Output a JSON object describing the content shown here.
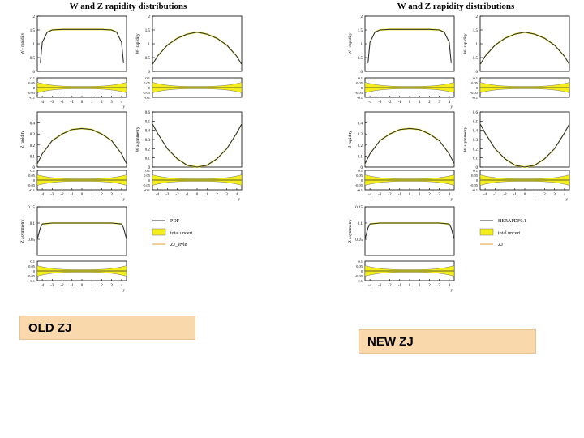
{
  "figures": [
    {
      "id": "old",
      "title": "W and Z rapidity distributions",
      "legend": [
        "PDF",
        "total uncert.",
        "ZJ_style"
      ],
      "caption": "OLD ZJ"
    },
    {
      "id": "new",
      "title": "W and Z rapidity distributions",
      "legend": [
        "HERAPDF0.1",
        "total uncert.",
        "ZJ"
      ],
      "caption": "NEW ZJ"
    }
  ],
  "colors": {
    "band": "#f4ee1c",
    "line": "#333333",
    "style_line": "#e0a030"
  },
  "chart_data": [
    {
      "type": "line",
      "ylabel": "W+ rapidity",
      "xlabel": "y",
      "xlim": [
        -4.5,
        4.5
      ],
      "ylim": [
        0,
        2
      ],
      "x_ticks": [
        "-4",
        "-3",
        "-2",
        "-1",
        "0",
        "1",
        "2",
        "3",
        "4"
      ],
      "y_ticks": [
        "0",
        "0.5",
        "1",
        "1.5",
        "2"
      ],
      "x": [
        -4.2,
        -4.0,
        -3.5,
        -3.0,
        -2.0,
        -1.0,
        0,
        1.0,
        2.0,
        3.0,
        3.5,
        4.0,
        4.2
      ],
      "series": [
        {
          "values": [
            0.3,
            1.05,
            1.42,
            1.5,
            1.52,
            1.52,
            1.52,
            1.52,
            1.52,
            1.5,
            1.42,
            1.05,
            0.3
          ]
        }
      ],
      "ratio_ylim": [
        -0.1,
        0.1
      ],
      "ratio_ticks": [
        "0.1",
        "0.05",
        "0",
        "-0.05",
        "-0.1"
      ]
    },
    {
      "type": "line",
      "ylabel": "W- rapidity",
      "xlabel": "",
      "xlim": [
        -4.5,
        4.5
      ],
      "ylim": [
        0,
        2
      ],
      "x_ticks": [],
      "y_ticks": [
        "0",
        "0.5",
        "1",
        "1.5",
        "2"
      ],
      "x": [
        -4.5,
        -4.0,
        -3.0,
        -2.0,
        -1.0,
        0,
        1.0,
        2.0,
        3.0,
        4.0,
        4.5
      ],
      "series": [
        {
          "values": [
            0.25,
            0.55,
            0.95,
            1.2,
            1.35,
            1.42,
            1.35,
            1.2,
            0.95,
            0.55,
            0.25
          ]
        }
      ],
      "ratio_ylim": [
        -0.1,
        0.1
      ],
      "ratio_ticks": [
        "0.1",
        "0.05",
        "0",
        "-0.05",
        "-0.1"
      ]
    },
    {
      "type": "line",
      "ylabel": "Z rapidity",
      "xlabel": "y",
      "xlim": [
        -4.5,
        4.5
      ],
      "ylim": [
        0,
        0.5
      ],
      "x_ticks": [
        "-4",
        "-3",
        "-2",
        "-1",
        "0",
        "1",
        "2",
        "3",
        "4"
      ],
      "y_ticks": [
        "0",
        "0.1",
        "0.2",
        "0.3",
        "0.4"
      ],
      "x": [
        -4.5,
        -4.0,
        -3.0,
        -2.0,
        -1.0,
        0,
        1.0,
        2.0,
        3.0,
        4.0,
        4.5
      ],
      "series": [
        {
          "values": [
            0.03,
            0.12,
            0.24,
            0.3,
            0.34,
            0.35,
            0.34,
            0.3,
            0.24,
            0.12,
            0.03
          ]
        }
      ],
      "ratio_ylim": [
        -0.1,
        0.1
      ],
      "ratio_ticks": [
        "0.1",
        "0.05",
        "0",
        "-0.05",
        "-0.1"
      ]
    },
    {
      "type": "line",
      "ylabel": "W asymmetry",
      "xlabel": "y",
      "xlim": [
        -4.5,
        4.5
      ],
      "ylim": [
        0,
        0.6
      ],
      "x_ticks": [
        "-4",
        "-3",
        "-2",
        "-1",
        "0",
        "1",
        "2",
        "3",
        "4"
      ],
      "y_ticks": [
        "0",
        "0.1",
        "0.2",
        "0.3",
        "0.4",
        "0.5",
        "0.6"
      ],
      "x": [
        -4.5,
        -4.0,
        -3.0,
        -2.0,
        -1.0,
        0,
        1.0,
        2.0,
        3.0,
        4.0,
        4.5
      ],
      "series": [
        {
          "values": [
            0.47,
            0.37,
            0.2,
            0.09,
            0.02,
            0.0,
            0.02,
            0.09,
            0.2,
            0.37,
            0.47
          ]
        }
      ],
      "ratio_ylim": [
        -0.1,
        0.1
      ],
      "ratio_ticks": [
        "0.1",
        "0.05",
        "0",
        "-0.05",
        "-0.1"
      ]
    },
    {
      "type": "line",
      "ylabel": "Z asymmetry",
      "xlabel": "y",
      "xlim": [
        -4.5,
        4.5
      ],
      "ylim": [
        0,
        0.15
      ],
      "x_ticks": [
        "-4",
        "-3",
        "-2",
        "-1",
        "0",
        "1",
        "2",
        "3",
        "4"
      ],
      "y_ticks": [
        "0.05",
        "0.1",
        "0.15"
      ],
      "x": [
        -4.5,
        -4.2,
        -4.0,
        -3.0,
        -2.0,
        -1.0,
        0,
        1.0,
        2.0,
        3.0,
        4.0,
        4.2,
        4.5
      ],
      "series": [
        {
          "values": [
            0.05,
            0.085,
            0.097,
            0.1,
            0.1,
            0.1,
            0.1,
            0.1,
            0.1,
            0.1,
            0.097,
            0.085,
            0.05
          ]
        }
      ],
      "ratio_ylim": [
        -0.1,
        0.1
      ],
      "ratio_ticks": [
        "0.1",
        "0.05",
        "0",
        "-0.05",
        "-0.1"
      ]
    }
  ]
}
